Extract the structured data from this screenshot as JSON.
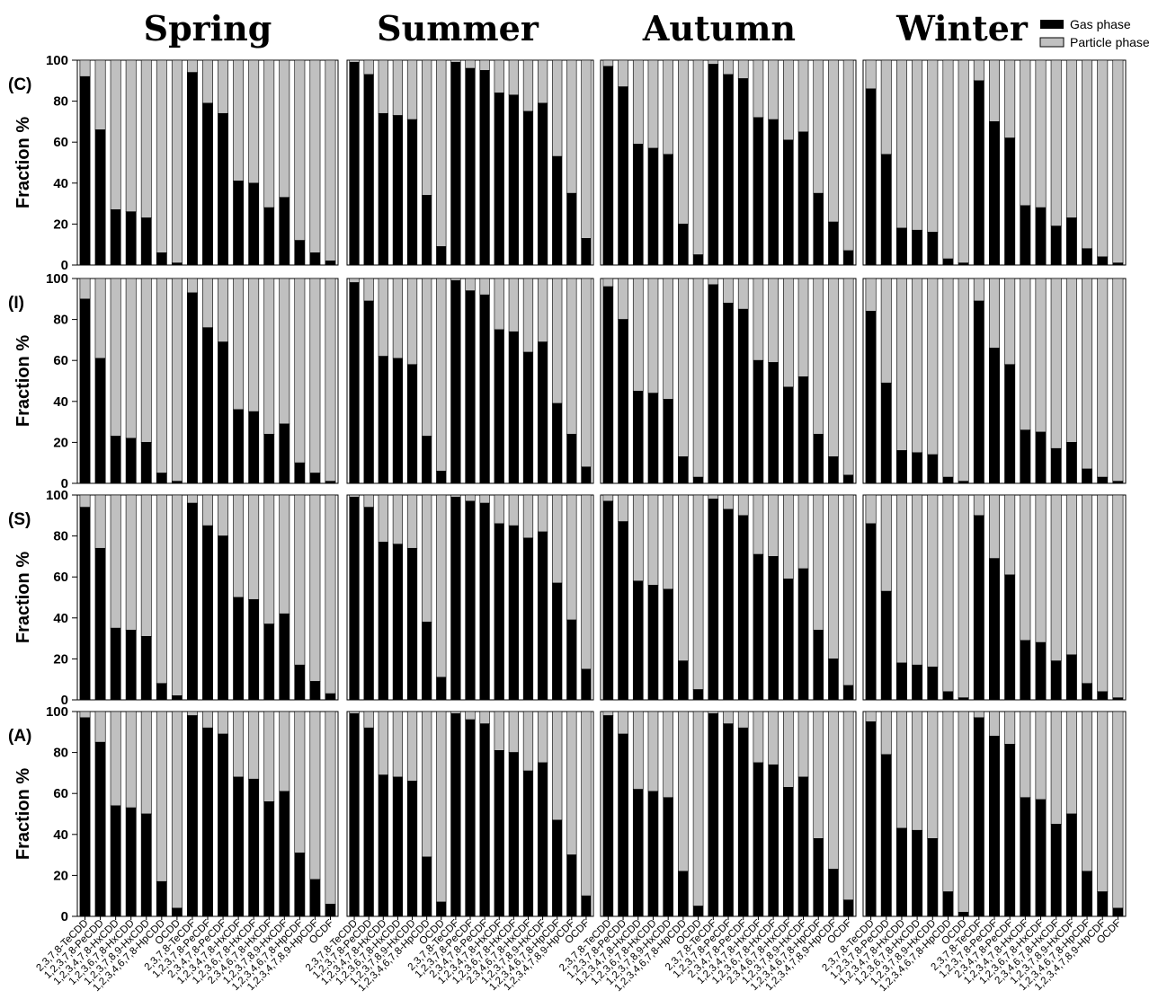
{
  "chart_data": {
    "type": "bar",
    "stacked": true,
    "ylabel": "Fraction %",
    "ylim": [
      0,
      100
    ],
    "yticks": [
      0,
      20,
      40,
      60,
      80,
      100
    ],
    "seasons": [
      "Spring",
      "Summer",
      "Autumn",
      "Winter"
    ],
    "categories": [
      "2,3,7,8-TeCDD",
      "1,2,3,7,8-PeCDD",
      "1,2,3,4,7,8-HxCDD",
      "1,2,3,6,7,8-HxCDD",
      "1,2,3,7,8,9-HxCDD",
      "1,2,3,4,6,7,8-HpCDD",
      "OCDD",
      "2,3,7,8-TeCDF",
      "1,2,3,7,8-PeCDF",
      "2,3,4,7,8-PeCDF",
      "1,2,3,4,7,8-HxCDF",
      "1,2,3,6,7,8-HxCDF",
      "2,3,4,6,7,8-HxCDF",
      "1,2,3,7,8,9-HxCDF",
      "1,2,3,4,6,7,8-HpCDF",
      "1,2,3,4,7,8,9-HpCDF",
      "OCDF"
    ],
    "legend": {
      "position": "top-right",
      "entries": [
        {
          "name": "Gas phase",
          "color": "#000000"
        },
        {
          "name": "Particle phase",
          "color": "#c0c0c0"
        }
      ]
    },
    "series_note_colors": {
      "gas": "#000000",
      "particle": "#c0c0c0"
    },
    "panels": [
      {
        "label": "(C)",
        "gas_phase": {
          "Spring": [
            92,
            66,
            27,
            26,
            23,
            6,
            1,
            94,
            79,
            74,
            41,
            40,
            28,
            33,
            12,
            6,
            2
          ],
          "Summer": [
            99,
            93,
            74,
            73,
            71,
            34,
            9,
            99,
            96,
            95,
            84,
            83,
            75,
            79,
            53,
            35,
            13
          ],
          "Autumn": [
            97,
            87,
            59,
            57,
            54,
            20,
            5,
            98,
            93,
            91,
            72,
            71,
            61,
            65,
            35,
            21,
            7
          ],
          "Winter": [
            86,
            54,
            18,
            17,
            16,
            3,
            1,
            90,
            70,
            62,
            29,
            28,
            19,
            23,
            8,
            4,
            1
          ]
        }
      },
      {
        "label": "(I)",
        "gas_phase": {
          "Spring": [
            90,
            61,
            23,
            22,
            20,
            5,
            1,
            93,
            76,
            69,
            36,
            35,
            24,
            29,
            10,
            5,
            1
          ],
          "Summer": [
            98,
            89,
            62,
            61,
            58,
            23,
            6,
            99,
            94,
            92,
            75,
            74,
            64,
            69,
            39,
            24,
            8
          ],
          "Autumn": [
            96,
            80,
            45,
            44,
            41,
            13,
            3,
            97,
            88,
            85,
            60,
            59,
            47,
            52,
            24,
            13,
            4
          ],
          "Winter": [
            84,
            49,
            16,
            15,
            14,
            3,
            1,
            89,
            66,
            58,
            26,
            25,
            17,
            20,
            7,
            3,
            1
          ]
        }
      },
      {
        "label": "(S)",
        "gas_phase": {
          "Spring": [
            94,
            74,
            35,
            34,
            31,
            8,
            2,
            96,
            85,
            80,
            50,
            49,
            37,
            42,
            17,
            9,
            3
          ],
          "Summer": [
            99,
            94,
            77,
            76,
            74,
            38,
            11,
            99,
            97,
            96,
            86,
            85,
            79,
            82,
            57,
            39,
            15
          ],
          "Autumn": [
            97,
            87,
            58,
            56,
            54,
            19,
            5,
            98,
            93,
            90,
            71,
            70,
            59,
            64,
            34,
            20,
            7
          ],
          "Winter": [
            86,
            53,
            18,
            17,
            16,
            4,
            1,
            90,
            69,
            61,
            29,
            28,
            19,
            22,
            8,
            4,
            1
          ]
        }
      },
      {
        "label": "(A)",
        "gas_phase": {
          "Spring": [
            97,
            85,
            54,
            53,
            50,
            17,
            4,
            98,
            92,
            89,
            68,
            67,
            56,
            61,
            31,
            18,
            6
          ],
          "Summer": [
            99,
            92,
            69,
            68,
            66,
            29,
            7,
            99,
            96,
            94,
            81,
            80,
            71,
            75,
            47,
            30,
            10
          ],
          "Autumn": [
            98,
            89,
            62,
            61,
            58,
            22,
            5,
            99,
            94,
            92,
            75,
            74,
            63,
            68,
            38,
            23,
            8
          ],
          "Winter": [
            95,
            79,
            43,
            42,
            38,
            12,
            2,
            97,
            88,
            84,
            58,
            57,
            45,
            50,
            22,
            12,
            4
          ]
        }
      }
    ]
  }
}
